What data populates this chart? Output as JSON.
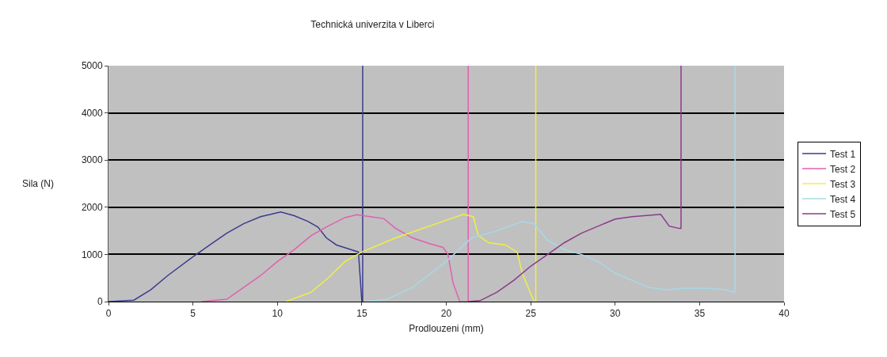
{
  "chart_data": {
    "type": "line",
    "title": "Technická univerzita v Liberci",
    "xlabel": "Prodlouzeni (mm)",
    "ylabel": "Sila (N)",
    "xlim": [
      0,
      40
    ],
    "xticks": [
      0,
      5,
      10,
      15,
      20,
      25,
      30,
      35,
      40
    ],
    "ylim": [
      0,
      5000
    ],
    "yticks": [
      0,
      1000,
      2000,
      3000,
      4000,
      5000
    ],
    "grid": "y",
    "legend": "right",
    "marker": "none",
    "line_style": "solid",
    "series": [
      {
        "name": "Test 1",
        "color": "#3b3b8f",
        "x": [
          0,
          1.5,
          2.5,
          3.5,
          5,
          6,
          7,
          8,
          9,
          10.2,
          11,
          11.8,
          12.4,
          12.9,
          13.5,
          14.2,
          14.8,
          15,
          15.05,
          15.05
        ],
        "values": [
          0,
          30,
          250,
          550,
          950,
          1200,
          1450,
          1650,
          1800,
          1900,
          1820,
          1700,
          1580,
          1350,
          1200,
          1120,
          1050,
          0,
          0,
          5000
        ]
      },
      {
        "name": "Test 2",
        "color": "#e060b0",
        "x": [
          5.5,
          7,
          8,
          9,
          10,
          11,
          12,
          13,
          14,
          14.7,
          15.5,
          16.3,
          17,
          18,
          19,
          19.8,
          20.1,
          20.4,
          20.8,
          21.3,
          21.3
        ],
        "values": [
          0,
          50,
          300,
          550,
          850,
          1100,
          1400,
          1600,
          1780,
          1840,
          1800,
          1760,
          1550,
          1350,
          1230,
          1150,
          1000,
          400,
          0,
          0,
          5000
        ]
      },
      {
        "name": "Test 3",
        "color": "#f0f040",
        "x": [
          10.5,
          12,
          13,
          14,
          15,
          17,
          19,
          21,
          21.6,
          21.9,
          22.5,
          23.5,
          24.2,
          24.5,
          25.2,
          25.3,
          25.3
        ],
        "values": [
          0,
          200,
          500,
          850,
          1050,
          1350,
          1600,
          1850,
          1800,
          1400,
          1250,
          1200,
          1050,
          600,
          0,
          0,
          5000
        ]
      },
      {
        "name": "Test 4",
        "color": "#a8d8e8",
        "x": [
          15.2,
          16.5,
          18,
          20,
          21.5,
          23,
          24.5,
          25.2,
          26,
          27,
          28,
          29,
          30,
          31,
          32,
          33,
          34,
          35.5,
          36.5,
          37,
          37.1,
          37.1
        ],
        "values": [
          0,
          50,
          300,
          850,
          1350,
          1500,
          1700,
          1650,
          1300,
          1100,
          1000,
          850,
          600,
          450,
          300,
          250,
          280,
          280,
          250,
          200,
          200,
          5000
        ]
      },
      {
        "name": "Test 5",
        "color": "#8b3a8b",
        "x": [
          21.3,
          22,
          23,
          24,
          25,
          26,
          27,
          28,
          29,
          30,
          31,
          32,
          32.7,
          33.2,
          33.8,
          33.9,
          33.9
        ],
        "values": [
          0,
          20,
          200,
          450,
          750,
          1000,
          1250,
          1450,
          1600,
          1750,
          1800,
          1830,
          1850,
          1600,
          1550,
          1550,
          5000
        ]
      }
    ]
  }
}
